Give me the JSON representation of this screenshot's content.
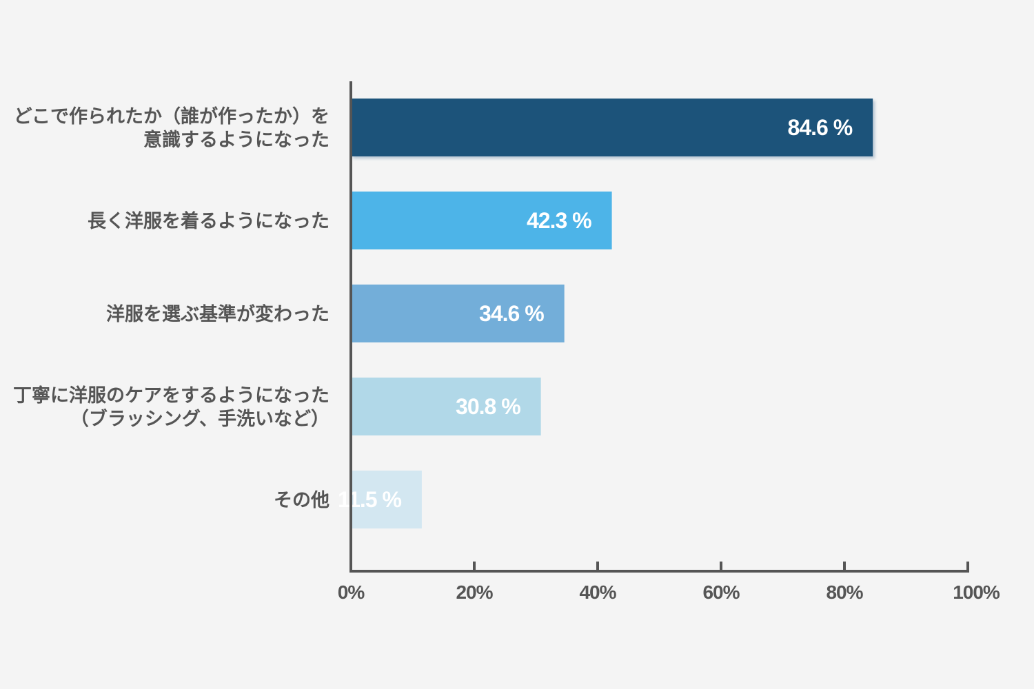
{
  "chart_data": {
    "type": "bar",
    "orientation": "horizontal",
    "title": "",
    "xlabel": "",
    "ylabel": "",
    "xlim": [
      0,
      100
    ],
    "grid": false,
    "legend": "none",
    "categories": [
      [
        "どこで作られたか（誰が作ったか）を",
        "意識するようになった"
      ],
      [
        "長く洋服を着るようになった"
      ],
      [
        "洋服を選ぶ基準が変わった"
      ],
      [
        "丁寧に洋服のケアをするようになった",
        "（ブラッシング、手洗いなど）"
      ],
      [
        "その他"
      ]
    ],
    "values": [
      84.6,
      42.3,
      34.6,
      30.8,
      11.5
    ],
    "value_labels": [
      "84.6 %",
      "42.3 %",
      "34.6 %",
      "30.8 %",
      "11.5 %"
    ],
    "bar_colors": [
      "#1f527a",
      "#4db4e8",
      "#73aed9",
      "#b1d8e8",
      "#d3e7f1"
    ],
    "x_ticks": [
      0,
      20,
      40,
      60,
      80,
      100
    ],
    "x_tick_labels": [
      "0%",
      "20%",
      "40%",
      "60%",
      "80%",
      "100%"
    ],
    "axis_color": "#555555"
  }
}
